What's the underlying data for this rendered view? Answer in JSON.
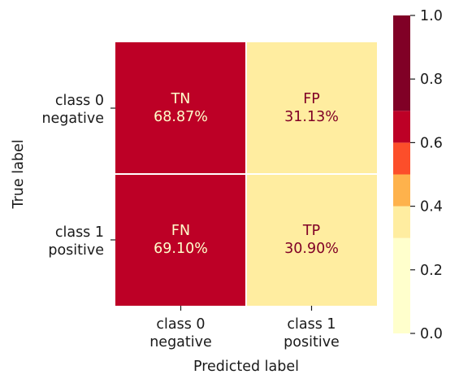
{
  "chart_data": {
    "type": "heatmap",
    "title": "",
    "xlabel": "Predicted label",
    "ylabel": "True label",
    "x_ticks": [
      [
        "class 0",
        "negative"
      ],
      [
        "class 1",
        "positive"
      ]
    ],
    "y_ticks": [
      [
        "class 0",
        "negative"
      ],
      [
        "class 1",
        "positive"
      ]
    ],
    "cells": [
      [
        {
          "name": "TN",
          "pct": "68.87%",
          "value": 0.6887
        },
        {
          "name": "FP",
          "pct": "31.13%",
          "value": 0.3113
        }
      ],
      [
        {
          "name": "FN",
          "pct": "69.10%",
          "value": 0.691
        },
        {
          "name": "TP",
          "pct": "30.90%",
          "value": 0.309
        }
      ]
    ],
    "colorbar": {
      "ticks": [
        "0.0",
        "0.2",
        "0.4",
        "0.6",
        "0.8",
        "1.0"
      ],
      "range": [
        0,
        1
      ],
      "bins": [
        {
          "from": 0.0,
          "to": 0.3,
          "color": "#ffffcc"
        },
        {
          "from": 0.3,
          "to": 0.4,
          "color": "#ffeda0"
        },
        {
          "from": 0.4,
          "to": 0.5,
          "color": "#feb24c"
        },
        {
          "from": 0.5,
          "to": 0.6,
          "color": "#fc4e2a"
        },
        {
          "from": 0.6,
          "to": 0.7,
          "color": "#bd0026"
        },
        {
          "from": 0.7,
          "to": 1.0,
          "color": "#800026"
        }
      ]
    },
    "colors": {
      "high": "#800026",
      "low": "#ffffcc",
      "text_on_dark": "#ffffcc",
      "text_on_light": "#800026"
    }
  }
}
